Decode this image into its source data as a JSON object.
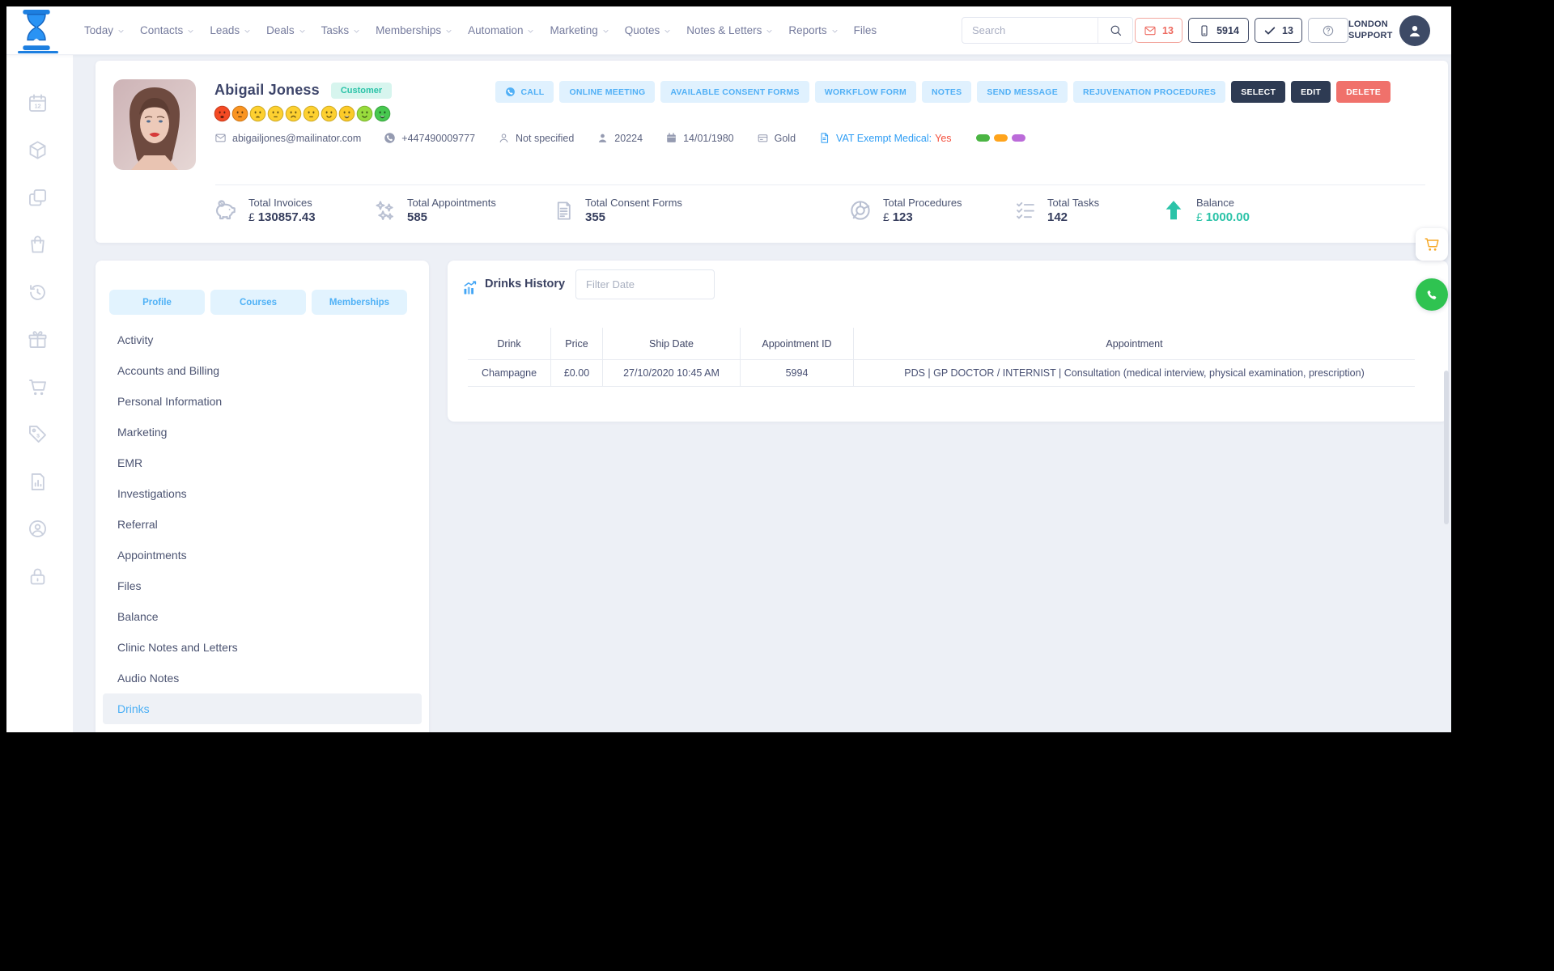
{
  "topbar": {
    "nav": [
      {
        "label": "Today",
        "has_menu": true
      },
      {
        "label": "Contacts",
        "has_menu": true
      },
      {
        "label": "Leads",
        "has_menu": true
      },
      {
        "label": "Deals",
        "has_menu": true
      },
      {
        "label": "Tasks",
        "has_menu": true
      },
      {
        "label": "Memberships",
        "has_menu": true
      },
      {
        "label": "Automation",
        "has_menu": true
      },
      {
        "label": "Marketing",
        "has_menu": true
      },
      {
        "label": "Quotes",
        "has_menu": true
      },
      {
        "label": "Notes & Letters",
        "has_menu": true
      },
      {
        "label": "Reports",
        "has_menu": true
      },
      {
        "label": "Files",
        "has_menu": false
      }
    ],
    "search": {
      "placeholder": "Search"
    },
    "indicators": [
      {
        "icon": "envelope-icon",
        "count": "13",
        "style": "danger"
      },
      {
        "icon": "mobile-icon",
        "count": "5914",
        "style": "dark"
      },
      {
        "icon": "check-icon",
        "count": "13",
        "style": "dark"
      },
      {
        "icon": "question-icon",
        "count": "",
        "style": "muted"
      }
    ],
    "account_label_line1": "LONDON",
    "account_label_line2": "SUPPORT"
  },
  "sidebar": {
    "items": [
      {
        "icon": "calendar-icon"
      },
      {
        "icon": "package-icon"
      },
      {
        "icon": "copy-icon"
      },
      {
        "icon": "shopping-bag-icon"
      },
      {
        "icon": "history-icon"
      },
      {
        "icon": "gift-icon"
      },
      {
        "icon": "cart-icon"
      },
      {
        "icon": "price-tag-icon"
      },
      {
        "icon": "report-icon"
      },
      {
        "icon": "user-circle-icon"
      },
      {
        "icon": "lock-icon"
      }
    ]
  },
  "customer": {
    "name": "Abigail Joness",
    "badge": "Customer",
    "mood_scale": [
      {
        "color": "#f44a24",
        "mouth": "open-frown"
      },
      {
        "color": "#fa9421",
        "mouth": "neutral"
      },
      {
        "color": "#fdd030",
        "mouth": "open-sad"
      },
      {
        "color": "#fdd030",
        "mouth": "neutral"
      },
      {
        "color": "#fdd030",
        "mouth": "sad"
      },
      {
        "color": "#fdd030",
        "mouth": "neutral"
      },
      {
        "color": "#fdd030",
        "mouth": "smile"
      },
      {
        "color": "#fccb28",
        "mouth": "open-smile"
      },
      {
        "color": "#98dc3c",
        "mouth": "smile"
      },
      {
        "color": "#47c84f",
        "mouth": "open-smile"
      }
    ],
    "contacts": [
      {
        "icon": "envelope-icon",
        "text": "abigailjones@mailinator.com"
      },
      {
        "icon": "phone-circle-icon",
        "text": "+447490009777"
      },
      {
        "icon": "person-outline-icon",
        "text": "Not specified"
      },
      {
        "icon": "person-solid-icon",
        "text": "20224"
      },
      {
        "icon": "calendar-solid-icon",
        "text": "14/01/1980"
      },
      {
        "icon": "card-icon",
        "text": "Gold"
      },
      {
        "icon": "document-icon",
        "text": "VAT Exempt Medical:",
        "value": "Yes"
      }
    ],
    "labels": [
      "#4bb543",
      "#ffa41c",
      "#bb6bd9"
    ],
    "primary_actions": [
      {
        "label": "CALL",
        "icon": "phone-circle-icon"
      },
      {
        "label": "ONLINE MEETING"
      },
      {
        "label": "AVAILABLE CONSENT FORMS"
      },
      {
        "label": "WORKFLOW FORM"
      },
      {
        "label": "NOTES"
      },
      {
        "label": "SEND MESSAGE"
      },
      {
        "label": "REJUVENATION PROCEDURES"
      }
    ],
    "secondary_actions": [
      {
        "label": "SELECT",
        "style": "dark"
      },
      {
        "label": "EDIT",
        "style": "dark"
      },
      {
        "label": "DELETE",
        "style": "danger"
      }
    ],
    "stats": [
      {
        "icon": "piggy-bank-icon",
        "label": "Total Invoices",
        "currency": "£ ",
        "value": "130857.43"
      },
      {
        "icon": "sparkles-icon",
        "label": "Total Appointments",
        "value": "585"
      },
      {
        "icon": "consent-form-icon",
        "label": "Total Consent Forms",
        "value": "355"
      },
      {
        "icon": "donut-chart-icon",
        "label": "Total Procedures",
        "currency": "£ ",
        "value": "123"
      },
      {
        "icon": "task-list-icon",
        "label": "Total Tasks",
        "value": "142"
      },
      {
        "icon": "arrow-up-icon",
        "label": "Balance",
        "currency": "£ ",
        "value": "1000.00",
        "accent": true
      }
    ]
  },
  "profile_panel": {
    "tabs": [
      {
        "label": "Profile"
      },
      {
        "label": "Courses"
      },
      {
        "label": "Memberships"
      }
    ],
    "items": [
      "Activity",
      "Accounts and Billing",
      "Personal Information",
      "Marketing",
      "EMR",
      "Investigations",
      "Referral",
      "Appointments",
      "Files",
      "Balance",
      "Clinic Notes and Letters",
      "Audio Notes",
      "Drinks"
    ],
    "active_item": "Drinks"
  },
  "drinks_panel": {
    "title": "Drinks History",
    "filter": {
      "placeholder": "Filter Date"
    },
    "table": {
      "columns": [
        "Drink",
        "Price",
        "Ship Date",
        "Appointment ID",
        "Appointment"
      ],
      "rows": [
        [
          "Champagne",
          "£0.00",
          "27/10/2020 10:45 AM",
          "5994",
          "PDS | GP DOCTOR / INTERNIST | Consultation (medical interview, physical examination, prescription)"
        ]
      ]
    }
  },
  "colors": {
    "accent_blue": "#4fb1f6",
    "accent_teal": "#2bc3a8",
    "danger": "#f0716b",
    "dark_navy": "#2e3b53",
    "page_bg": "#edf0f6",
    "cart_orange": "#f6a723",
    "whatsapp_green": "#2fc351"
  }
}
